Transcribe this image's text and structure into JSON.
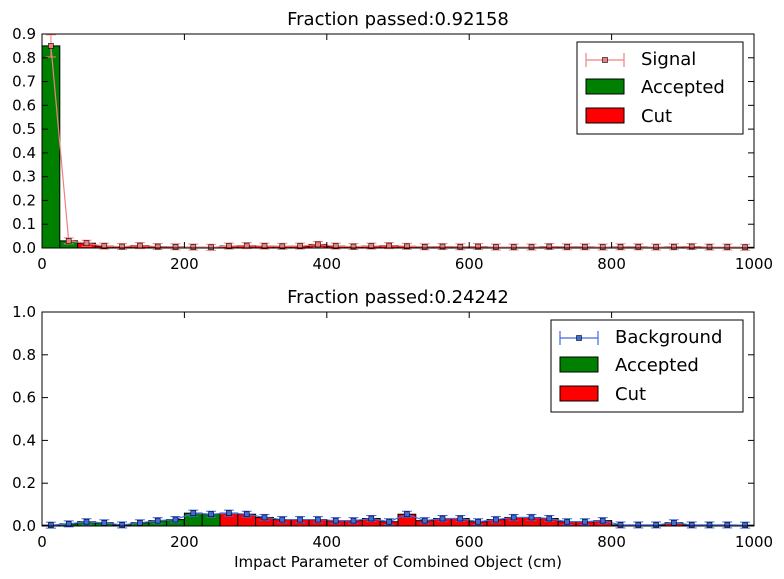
{
  "chart_data": [
    {
      "type": "bar",
      "title": "Fraction passed:0.92158",
      "xlabel": "",
      "ylabel": "",
      "xlim": [
        0,
        1000
      ],
      "ylim": [
        0,
        0.9
      ],
      "xticks": [
        "0",
        "200",
        "400",
        "600",
        "800",
        "1000"
      ],
      "yticks": [
        "0.0",
        "0.1",
        "0.2",
        "0.3",
        "0.4",
        "0.5",
        "0.6",
        "0.7",
        "0.8",
        "0.9"
      ],
      "bin_width": 25,
      "cut_threshold": 50,
      "legend_position": "top-right",
      "legend": [
        "Signal",
        "Accepted",
        "Cut"
      ],
      "colors": {
        "points": "#f08080",
        "accepted": "#008000",
        "cut": "#ff0000"
      },
      "values": [
        0.85,
        0.03,
        0.02,
        0.008,
        0.006,
        0.01,
        0.006,
        0.005,
        0.004,
        0.003,
        0.008,
        0.01,
        0.008,
        0.007,
        0.008,
        0.015,
        0.008,
        0.006,
        0.008,
        0.01,
        0.007,
        0.005,
        0.006,
        0.005,
        0.006,
        0.004,
        0.004,
        0.004,
        0.006,
        0.005,
        0.005,
        0.004,
        0.005,
        0.005,
        0.004,
        0.005,
        0.006,
        0.004,
        0.004,
        0.003
      ]
    },
    {
      "type": "bar",
      "title": "Fraction passed:0.24242",
      "xlabel": "Impact Parameter of Combined Object (cm)",
      "ylabel": "",
      "xlim": [
        0,
        1000
      ],
      "ylim": [
        0,
        1.0
      ],
      "xticks": [
        "0",
        "200",
        "400",
        "600",
        "800",
        "1000"
      ],
      "yticks": [
        "0.0",
        "0.2",
        "0.4",
        "0.6",
        "0.8",
        "1.0"
      ],
      "bin_width": 25,
      "cut_threshold": 250,
      "legend_position": "top-right",
      "legend": [
        "Background",
        "Accepted",
        "Cut"
      ],
      "colors": {
        "points": "#4169e1",
        "accepted": "#008000",
        "cut": "#ff0000"
      },
      "values": [
        0.004,
        0.01,
        0.02,
        0.015,
        0.005,
        0.015,
        0.025,
        0.03,
        0.06,
        0.055,
        0.06,
        0.055,
        0.04,
        0.03,
        0.03,
        0.03,
        0.025,
        0.025,
        0.035,
        0.02,
        0.055,
        0.025,
        0.035,
        0.035,
        0.02,
        0.03,
        0.04,
        0.04,
        0.035,
        0.02,
        0.02,
        0.025,
        0.005,
        0.005,
        0.005,
        0.015,
        0.005,
        0.005,
        0.005,
        0.004
      ]
    }
  ]
}
